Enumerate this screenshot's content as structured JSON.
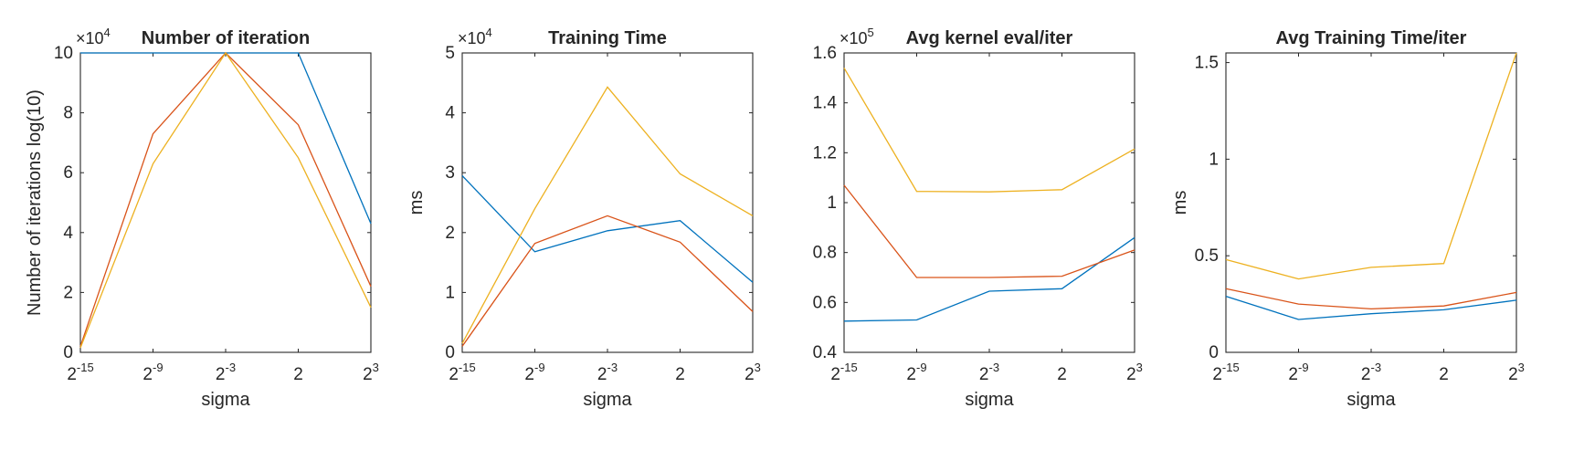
{
  "colors": {
    "series1": "#0072BD",
    "series2": "#D95319",
    "series3": "#EDB120",
    "axis": "#262626",
    "background": "#ffffff"
  },
  "chart_data": [
    {
      "type": "line",
      "title": "Number of iteration",
      "xlabel": "sigma",
      "ylabel": "Number of iterations log(10)",
      "x_ticks": [
        {
          "base": "2",
          "exp": "-15"
        },
        {
          "base": "2",
          "exp": "-9"
        },
        {
          "base": "2",
          "exp": "-3"
        },
        {
          "base": "2",
          "exp": ""
        },
        {
          "base": "2",
          "exp": "3"
        }
      ],
      "y_multiplier": {
        "base": "×10",
        "exp": "4"
      },
      "ylim": [
        0,
        10
      ],
      "y_ticks": [
        "0",
        "2",
        "4",
        "6",
        "8",
        "10"
      ],
      "y_tick_values": [
        0,
        2,
        4,
        6,
        8,
        10
      ],
      "grid": false,
      "series": [
        {
          "values": [
            10,
            10,
            10,
            10,
            4.3
          ],
          "color": "#0072BD"
        },
        {
          "values": [
            0.2,
            7.3,
            10,
            7.6,
            2.2
          ],
          "color": "#D95319"
        },
        {
          "values": [
            0.15,
            6.3,
            10,
            6.5,
            1.5
          ],
          "color": "#EDB120"
        }
      ]
    },
    {
      "type": "line",
      "title": "Training Time",
      "xlabel": "sigma",
      "ylabel": "ms",
      "x_ticks": [
        {
          "base": "2",
          "exp": "-15"
        },
        {
          "base": "2",
          "exp": "-9"
        },
        {
          "base": "2",
          "exp": "-3"
        },
        {
          "base": "2",
          "exp": ""
        },
        {
          "base": "2",
          "exp": "3"
        }
      ],
      "y_multiplier": {
        "base": "×10",
        "exp": "4"
      },
      "ylim": [
        0,
        5
      ],
      "y_ticks": [
        "0",
        "1",
        "2",
        "3",
        "4",
        "5"
      ],
      "y_tick_values": [
        0,
        1,
        2,
        3,
        4,
        5
      ],
      "grid": false,
      "series": [
        {
          "values": [
            2.95,
            1.68,
            2.03,
            2.2,
            1.17
          ],
          "color": "#0072BD"
        },
        {
          "values": [
            0.1,
            1.82,
            2.28,
            1.84,
            0.68
          ],
          "color": "#D95319"
        },
        {
          "values": [
            0.15,
            2.4,
            4.43,
            2.98,
            2.28
          ],
          "color": "#EDB120"
        }
      ]
    },
    {
      "type": "line",
      "title": "Avg kernel eval/iter",
      "xlabel": "sigma",
      "ylabel": "",
      "x_ticks": [
        {
          "base": "2",
          "exp": "-15"
        },
        {
          "base": "2",
          "exp": "-9"
        },
        {
          "base": "2",
          "exp": "-3"
        },
        {
          "base": "2",
          "exp": ""
        },
        {
          "base": "2",
          "exp": "3"
        }
      ],
      "y_multiplier": {
        "base": "×10",
        "exp": "5"
      },
      "ylim": [
        0.4,
        1.6
      ],
      "y_ticks": [
        "0.4",
        "0.6",
        "0.8",
        "1",
        "1.2",
        "1.4",
        "1.6"
      ],
      "y_tick_values": [
        0.4,
        0.6,
        0.8,
        1.0,
        1.2,
        1.4,
        1.6
      ],
      "grid": false,
      "series": [
        {
          "values": [
            0.525,
            0.53,
            0.645,
            0.655,
            0.86
          ],
          "color": "#0072BD"
        },
        {
          "values": [
            1.07,
            0.7,
            0.7,
            0.705,
            0.81
          ],
          "color": "#D95319"
        },
        {
          "values": [
            1.54,
            1.045,
            1.043,
            1.052,
            1.215
          ],
          "color": "#EDB120"
        }
      ]
    },
    {
      "type": "line",
      "title": "Avg Training Time/iter",
      "xlabel": "sigma",
      "ylabel": "ms",
      "x_ticks": [
        {
          "base": "2",
          "exp": "-15"
        },
        {
          "base": "2",
          "exp": "-9"
        },
        {
          "base": "2",
          "exp": "-3"
        },
        {
          "base": "2",
          "exp": ""
        },
        {
          "base": "2",
          "exp": "3"
        }
      ],
      "y_multiplier": null,
      "ylim": [
        0,
        1.55
      ],
      "y_ticks": [
        "0",
        "0.5",
        "1",
        "1.5"
      ],
      "y_tick_values": [
        0,
        0.5,
        1,
        1.5
      ],
      "grid": false,
      "series": [
        {
          "values": [
            0.29,
            0.17,
            0.2,
            0.22,
            0.27
          ],
          "color": "#0072BD"
        },
        {
          "values": [
            0.33,
            0.25,
            0.225,
            0.24,
            0.31
          ],
          "color": "#D95319"
        },
        {
          "values": [
            0.48,
            0.38,
            0.44,
            0.46,
            1.55
          ],
          "color": "#EDB120"
        }
      ]
    }
  ]
}
